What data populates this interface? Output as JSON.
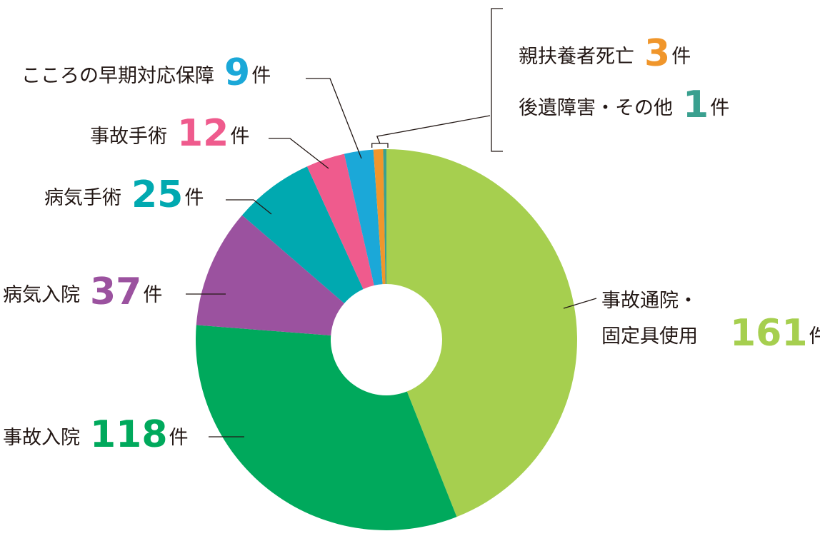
{
  "chart_data": {
    "type": "pie",
    "donut": true,
    "unit": "件",
    "slices": [
      {
        "label": "事故通院・",
        "label2": "固定具使用",
        "value": 161,
        "color": "#a6cf4f"
      },
      {
        "label": "事故入院",
        "value": 118,
        "color": "#00a95c"
      },
      {
        "label": "病気入院",
        "value": 37,
        "color": "#9b529f"
      },
      {
        "label": "病気手術",
        "value": 25,
        "color": "#00a9b0"
      },
      {
        "label": "事故手術",
        "value": 12,
        "color": "#ef5b8d"
      },
      {
        "label": "こころの早期対応保障",
        "value": 9,
        "color": "#1ba8d8"
      },
      {
        "label": "親扶養者死亡",
        "value": 3,
        "color": "#f0962b"
      },
      {
        "label": "後遺障害・その他",
        "value": 1,
        "color": "#3aa08f"
      }
    ]
  }
}
